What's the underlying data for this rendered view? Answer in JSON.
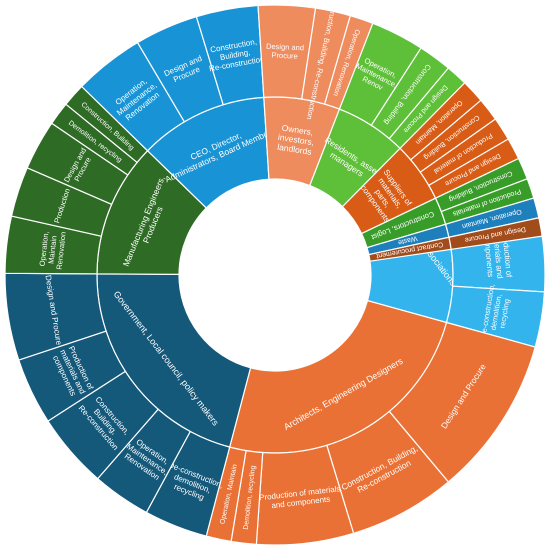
{
  "chart_data": {
    "type": "sunburst",
    "title": "",
    "value_unit": "share of full circle (fraction)",
    "colors": {
      "researchers": "#33b4ec",
      "architects": "#ea7135",
      "government": "#14587a",
      "manufacturing": "#2e6b25",
      "ceo": "#1893d5",
      "owners": "#ee8c5e",
      "residents": "#5ebf38",
      "suppliers": "#d95c16",
      "constructors": "#389d28",
      "waste": "#1d7fbb",
      "contract": "#a24c1b"
    },
    "groups": [
      {
        "label": "Researchers, Academics and/or Professional Associations",
        "color_key": "researchers",
        "children": [
          {
            "label": "Construction, Building, Re-construction",
            "value": 0.074
          },
          {
            "label": "Design and Procure",
            "value": 0.071
          },
          {
            "label": "Operation, Use, Maintenance, Renovation, Refurbishment",
            "value": 0.066
          },
          {
            "label": "Production of materials and components",
            "value": 0.049
          },
          {
            "label": "De-construction, demolition, recycling",
            "value": 0.033
          }
        ]
      },
      {
        "label": "Architects, Engineering Designers",
        "color_key": "architects",
        "children": [
          {
            "label": "Design and Procure",
            "value": 0.096
          },
          {
            "label": "Construction, Building, Re-construction",
            "value": 0.064
          },
          {
            "label": "Production of materials and components",
            "value": 0.058
          },
          {
            "label": "Demolition, recycling",
            "value": 0.015
          },
          {
            "label": "Operation, Maintain",
            "value": 0.015
          }
        ]
      },
      {
        "label": "Government, Local council, policy makers",
        "color_key": "government",
        "children": [
          {
            "label": "De-construction, demolition, recycling",
            "value": 0.038
          },
          {
            "label": "Operation, Maintenance, Renovation",
            "value": 0.035
          },
          {
            "label": "Construction, Building, Re-construction",
            "value": 0.045
          },
          {
            "label": "Production of materials and components",
            "value": 0.04
          },
          {
            "label": "Design and Procure",
            "value": 0.052
          }
        ]
      },
      {
        "label": "Manufacturing Engineers, Producers",
        "color_key": "manufacturing",
        "children": [
          {
            "label": "Operation, Maintain Renovation",
            "value": 0.034
          },
          {
            "label": "Production",
            "value": 0.03
          },
          {
            "label": "Design and Procure",
            "value": 0.03
          },
          {
            "label": "Demolition, recycling",
            "value": 0.014
          },
          {
            "label": "Construction, Building",
            "value": 0.014
          }
        ]
      },
      {
        "label": "CEO, Director, Administrators, Board Members",
        "color_key": "ceo",
        "children": [
          {
            "label": "Operation, Maintenance, Renovation",
            "value": 0.042
          },
          {
            "label": "Design and Procure",
            "value": 0.038
          },
          {
            "label": "Construction, Building, Re-construction",
            "value": 0.037
          }
        ]
      },
      {
        "label": "Owners, investors, landlords",
        "color_key": "owners",
        "children": [
          {
            "label": "Design and Procure",
            "value": 0.034
          },
          {
            "label": "Construction, Building, Re-construction",
            "value": 0.021
          },
          {
            "label": "Operation, Renovation",
            "value": 0.014
          }
        ]
      },
      {
        "label": "Residents, asset managers",
        "color_key": "residents",
        "children": [
          {
            "label": "Operation, Maintenance, Renov",
            "value": 0.032
          },
          {
            "label": "Construction, Building",
            "value": 0.02
          },
          {
            "label": "Design and Procure",
            "value": 0.013
          }
        ]
      },
      {
        "label": "Suppliers of materials, parts, components",
        "color_key": "suppliers",
        "children": [
          {
            "label": "Operation, Maintain",
            "value": 0.014
          },
          {
            "label": "Construction, Building",
            "value": 0.014
          },
          {
            "label": "Production of material",
            "value": 0.014
          },
          {
            "label": "Design and Procure",
            "value": 0.013
          }
        ]
      },
      {
        "label": "Constructors, Logist",
        "color_key": "constructors",
        "children": [
          {
            "label": "Construction, Building",
            "value": 0.013
          },
          {
            "label": "Production of materials",
            "value": 0.012
          }
        ]
      },
      {
        "label": "Waste",
        "color_key": "waste",
        "children": [
          {
            "label": "Operation, Maintain",
            "value": 0.012
          }
        ]
      },
      {
        "label": "Contract procurement",
        "color_key": "contract",
        "children": [
          {
            "label": "Design and Procure",
            "value": 0.011
          }
        ]
      }
    ]
  }
}
